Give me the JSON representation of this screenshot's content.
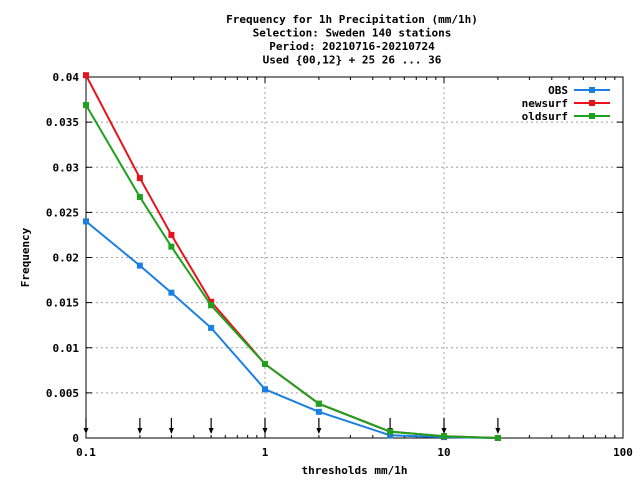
{
  "chart_data": {
    "type": "line",
    "title_lines": [
      "Frequency  for 1h Precipitation (mm/1h)",
      "Selection: Sweden    140 stations",
      "Period: 20210716-20210724",
      "Used {00,12} + 25 26 ... 36"
    ],
    "xlabel": "thresholds mm/1h",
    "ylabel": "Frequency",
    "x_scale": "log",
    "xlim": [
      0.1,
      100
    ],
    "ylim": [
      0,
      0.04
    ],
    "x_ticks": [
      0.1,
      1,
      10,
      100
    ],
    "x_tick_labels": [
      "0.1",
      "1",
      "10",
      "100"
    ],
    "y_ticks": [
      0,
      0.005,
      0.01,
      0.015,
      0.02,
      0.025,
      0.03,
      0.035,
      0.04
    ],
    "y_tick_labels": [
      "0",
      "0.005",
      "0.01",
      "0.015",
      "0.02",
      "0.025",
      "0.03",
      "0.035",
      "0.04"
    ],
    "grid": true,
    "legend_position": "top-right",
    "threshold_arrows_x": [
      0.1,
      0.2,
      0.3,
      0.5,
      1,
      2,
      5,
      10,
      20
    ],
    "x": [
      0.1,
      0.2,
      0.3,
      0.5,
      1,
      2,
      5,
      10,
      20
    ],
    "series": [
      {
        "name": "OBS",
        "color": "#1a7fe0",
        "values": [
          0.024,
          0.0191,
          0.0161,
          0.0122,
          0.0054,
          0.0029,
          0.0003,
          0.0001,
          0.0
        ]
      },
      {
        "name": "newsurf",
        "color": "#e8121b",
        "values": [
          0.0402,
          0.0288,
          0.0225,
          0.0151,
          0.0082,
          0.0038,
          0.0007,
          0.0002,
          0.0
        ]
      },
      {
        "name": "oldsurf",
        "color": "#1ea11e",
        "values": [
          0.0369,
          0.0267,
          0.0212,
          0.0147,
          0.0082,
          0.0038,
          0.0007,
          0.0002,
          0.0
        ]
      }
    ]
  }
}
